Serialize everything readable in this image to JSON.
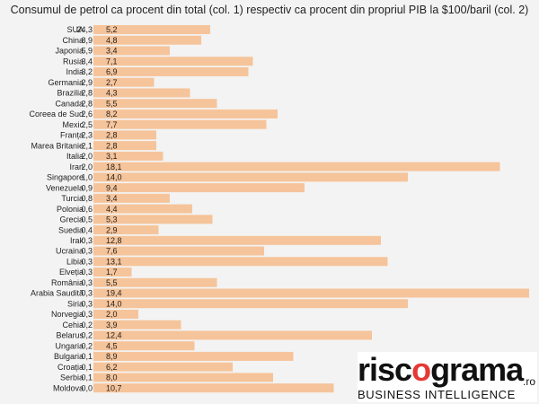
{
  "chart_data": {
    "type": "bar",
    "title": "Consumul de petrol ca procent din total (col. 1) respectiv ca procent din propriul PIB la $100/baril (col. 2)",
    "categories": [
      "SUA",
      "China",
      "Japonia",
      "Rusia",
      "India",
      "Germania",
      "Brazilia",
      "Canada",
      "Coreea de Sud",
      "Mexic",
      "Franța",
      "Marea Britanie",
      "Italia",
      "Iran",
      "Singapore",
      "Venezuela",
      "Turcia",
      "Polonia",
      "Grecia",
      "Suedia",
      "Irak",
      "Ucraina",
      "Libia",
      "Elveția",
      "România",
      "Arabia Saudită",
      "Siria",
      "Norvegia",
      "Cehia",
      "Belarus",
      "Ungaria",
      "Bulgaria",
      "Croația",
      "Serbia",
      "Moldova"
    ],
    "col1_labels": [
      "24,3",
      "8,9",
      "5,9",
      "3,4",
      "3,2",
      "2,9",
      "2,8",
      "2,8",
      "2,6",
      "2,5",
      "2,3",
      "2,1",
      "2,0",
      "2,0",
      "1,0",
      "0,9",
      "0,8",
      "0,6",
      "0,5",
      "0,4",
      "0,3",
      "0,3",
      "0,3",
      "0,3",
      "0,3",
      "0,3",
      "0,3",
      "0,3",
      "0,2",
      "0,2",
      "0,2",
      "0,1",
      "0,1",
      "0,1",
      "0,0"
    ],
    "col2_labels": [
      "5,2",
      "4,8",
      "3,4",
      "7,1",
      "6,9",
      "2,7",
      "4,3",
      "5,5",
      "8,2",
      "7,7",
      "2,8",
      "2,8",
      "3,1",
      "18,1",
      "14,0",
      "9,4",
      "3,4",
      "4,4",
      "5,3",
      "2,9",
      "12,8",
      "7,6",
      "13,1",
      "1,7",
      "5,5",
      "19,4",
      "14,0",
      "2,0",
      "3,9",
      "12,4",
      "4,5",
      "8,9",
      "6,2",
      "8,0",
      "10,7"
    ],
    "values": [
      5.2,
      4.8,
      3.4,
      7.1,
      6.9,
      2.7,
      4.3,
      5.5,
      8.2,
      7.7,
      2.8,
      2.8,
      3.1,
      18.1,
      14.0,
      9.4,
      3.4,
      4.4,
      5.3,
      2.9,
      12.8,
      7.6,
      13.1,
      1.7,
      5.5,
      19.4,
      14.0,
      2.0,
      3.9,
      12.4,
      4.5,
      8.9,
      6.2,
      8.0,
      10.7
    ],
    "xlim": [
      0,
      19.4
    ],
    "grid": false,
    "bar_color": "#f6c49a"
  },
  "logo": {
    "brand_pre": "risc",
    "brand_o": "o",
    "brand_post": "grama",
    "ro": ".ro",
    "tagline": "BUSINESS INTELLIGENCE"
  }
}
